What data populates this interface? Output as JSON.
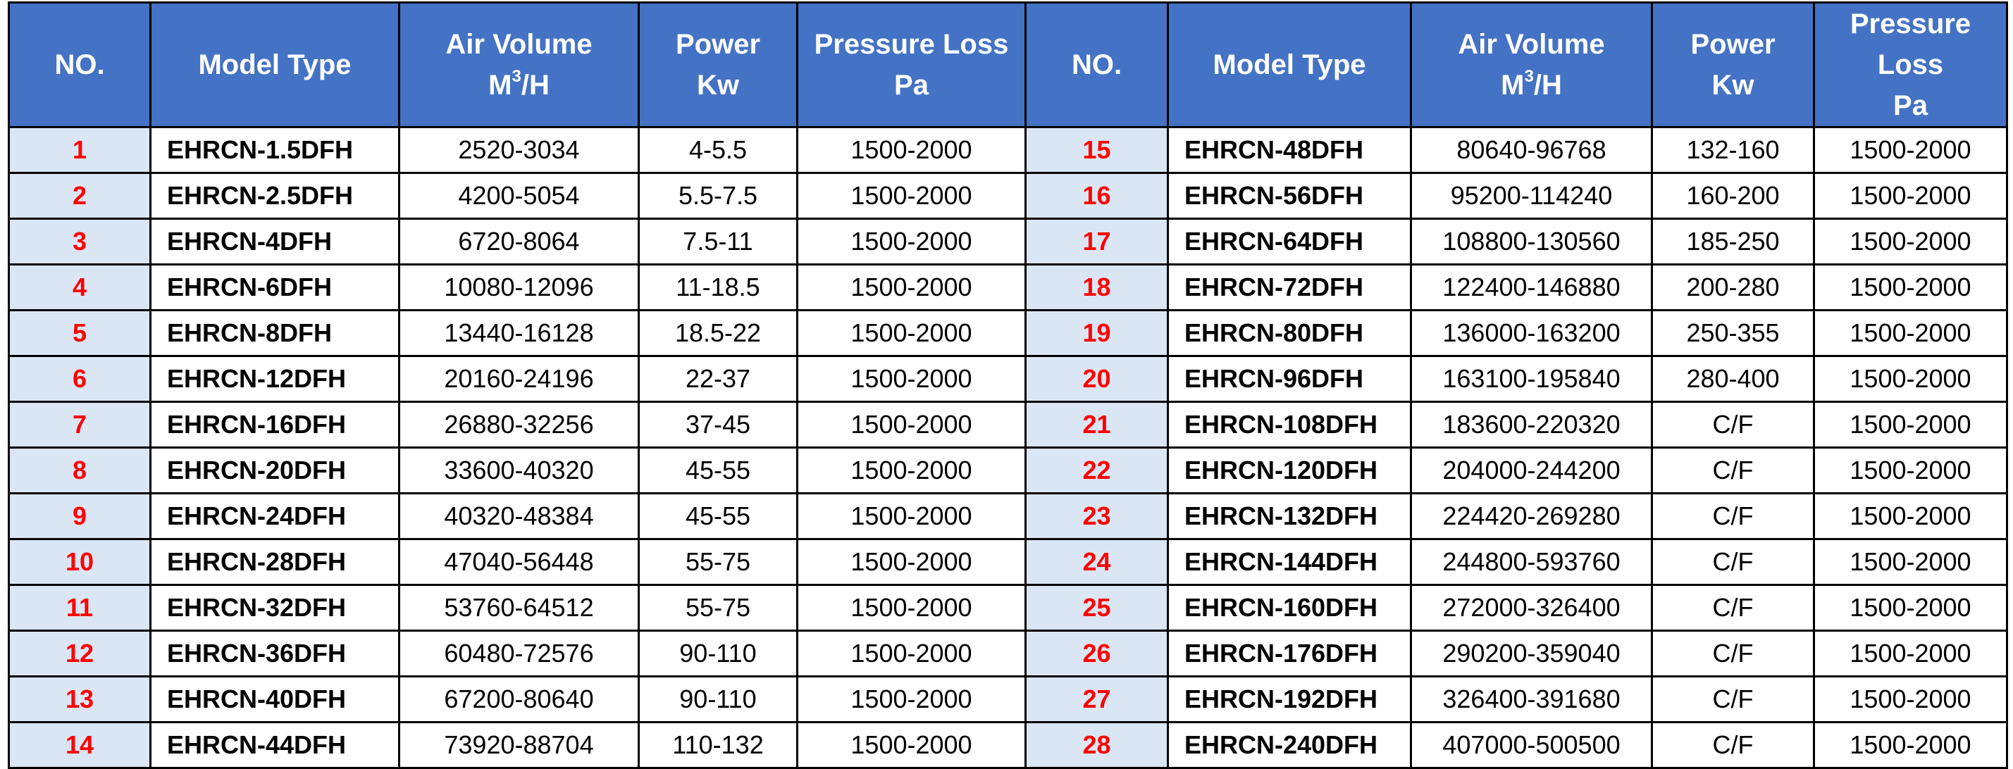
{
  "headers": {
    "no": "NO.",
    "model": "Model Type",
    "air_title": "Air Volume",
    "air_unit_base": "M",
    "air_unit_sup": "3",
    "air_unit_tail": "/H",
    "power_title": "Power",
    "power_unit": "Kw",
    "pressure_title": "Pressure Loss",
    "pressure_unit": "Pa"
  },
  "rows": [
    {
      "left": {
        "no": "1",
        "model": "EHRCN-1.5DFH",
        "air": "2520-3034",
        "power": "4-5.5",
        "pressure": "1500-2000"
      },
      "right": {
        "no": "15",
        "model": "EHRCN-48DFH",
        "air": "80640-96768",
        "power": "132-160",
        "pressure": "1500-2000"
      }
    },
    {
      "left": {
        "no": "2",
        "model": "EHRCN-2.5DFH",
        "air": "4200-5054",
        "power": "5.5-7.5",
        "pressure": "1500-2000"
      },
      "right": {
        "no": "16",
        "model": "EHRCN-56DFH",
        "air": "95200-114240",
        "power": "160-200",
        "pressure": "1500-2000"
      }
    },
    {
      "left": {
        "no": "3",
        "model": "EHRCN-4DFH",
        "air": "6720-8064",
        "power": "7.5-11",
        "pressure": "1500-2000"
      },
      "right": {
        "no": "17",
        "model": "EHRCN-64DFH",
        "air": "108800-130560",
        "power": "185-250",
        "pressure": "1500-2000"
      }
    },
    {
      "left": {
        "no": "4",
        "model": "EHRCN-6DFH",
        "air": "10080-12096",
        "power": "11-18.5",
        "pressure": "1500-2000"
      },
      "right": {
        "no": "18",
        "model": "EHRCN-72DFH",
        "air": "122400-146880",
        "power": "200-280",
        "pressure": "1500-2000"
      }
    },
    {
      "left": {
        "no": "5",
        "model": "EHRCN-8DFH",
        "air": "13440-16128",
        "power": "18.5-22",
        "pressure": "1500-2000"
      },
      "right": {
        "no": "19",
        "model": "EHRCN-80DFH",
        "air": "136000-163200",
        "power": "250-355",
        "pressure": "1500-2000"
      }
    },
    {
      "left": {
        "no": "6",
        "model": "EHRCN-12DFH",
        "air": "20160-24196",
        "power": "22-37",
        "pressure": "1500-2000"
      },
      "right": {
        "no": "20",
        "model": "EHRCN-96DFH",
        "air": "163100-195840",
        "power": "280-400",
        "pressure": "1500-2000"
      }
    },
    {
      "left": {
        "no": "7",
        "model": "EHRCN-16DFH",
        "air": "26880-32256",
        "power": "37-45",
        "pressure": "1500-2000"
      },
      "right": {
        "no": "21",
        "model": "EHRCN-108DFH",
        "air": "183600-220320",
        "power": "C/F",
        "pressure": "1500-2000"
      }
    },
    {
      "left": {
        "no": "8",
        "model": "EHRCN-20DFH",
        "air": "33600-40320",
        "power": "45-55",
        "pressure": "1500-2000"
      },
      "right": {
        "no": "22",
        "model": "EHRCN-120DFH",
        "air": "204000-244200",
        "power": "C/F",
        "pressure": "1500-2000"
      }
    },
    {
      "left": {
        "no": "9",
        "model": "EHRCN-24DFH",
        "air": "40320-48384",
        "power": "45-55",
        "pressure": "1500-2000"
      },
      "right": {
        "no": "23",
        "model": "EHRCN-132DFH",
        "air": "224420-269280",
        "power": "C/F",
        "pressure": "1500-2000"
      }
    },
    {
      "left": {
        "no": "10",
        "model": "EHRCN-28DFH",
        "air": "47040-56448",
        "power": "55-75",
        "pressure": "1500-2000"
      },
      "right": {
        "no": "24",
        "model": "EHRCN-144DFH",
        "air": "244800-593760",
        "power": "C/F",
        "pressure": "1500-2000"
      }
    },
    {
      "left": {
        "no": "11",
        "model": "EHRCN-32DFH",
        "air": "53760-64512",
        "power": "55-75",
        "pressure": "1500-2000"
      },
      "right": {
        "no": "25",
        "model": "EHRCN-160DFH",
        "air": "272000-326400",
        "power": "C/F",
        "pressure": "1500-2000"
      }
    },
    {
      "left": {
        "no": "12",
        "model": "EHRCN-36DFH",
        "air": "60480-72576",
        "power": "90-110",
        "pressure": "1500-2000"
      },
      "right": {
        "no": "26",
        "model": "EHRCN-176DFH",
        "air": "290200-359040",
        "power": "C/F",
        "pressure": "1500-2000"
      }
    },
    {
      "left": {
        "no": "13",
        "model": "EHRCN-40DFH",
        "air": "67200-80640",
        "power": "90-110",
        "pressure": "1500-2000"
      },
      "right": {
        "no": "27",
        "model": "EHRCN-192DFH",
        "air": "326400-391680",
        "power": "C/F",
        "pressure": "1500-2000"
      }
    },
    {
      "left": {
        "no": "14",
        "model": "EHRCN-44DFH",
        "air": "73920-88704",
        "power": "110-132",
        "pressure": "1500-2000"
      },
      "right": {
        "no": "28",
        "model": "EHRCN-240DFH",
        "air": "407000-500500",
        "power": "C/F",
        "pressure": "1500-2000"
      }
    }
  ],
  "colors": {
    "header_bg": "#4472c4",
    "header_text": "#ffffff",
    "no_cell_bg": "#dbe6f4",
    "no_text": "#ff0000",
    "border": "#000000"
  }
}
